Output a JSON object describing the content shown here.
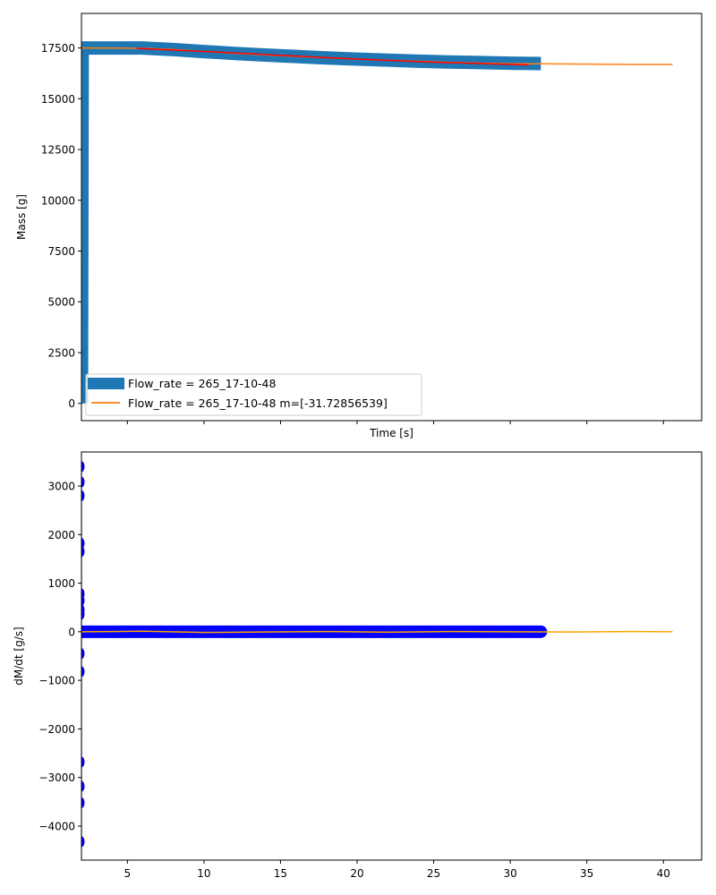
{
  "chart_data": [
    {
      "type": "line",
      "xlabel": "Time [s]",
      "ylabel": "Mass [g]",
      "xlim": [
        2.0,
        42.5
      ],
      "ylim": [
        -850,
        19200
      ],
      "xticks": [
        5,
        10,
        15,
        20,
        25,
        30,
        35,
        40
      ],
      "x_tick_labels_visible": false,
      "yticks": [
        0,
        2500,
        5000,
        7500,
        10000,
        12500,
        15000,
        17500
      ],
      "ytick_labels": [
        "0",
        "2500",
        "5000",
        "7500",
        "10000",
        "12500",
        "15000",
        "17500"
      ],
      "grid": false,
      "legend_position": "lower-left",
      "series": [
        {
          "name": "Flow_rate = 265_17-10-48",
          "style": "thick-band",
          "color": "#1f77b4",
          "x": [
            2.0,
            2.05,
            4,
            6,
            8,
            10,
            12,
            14,
            16,
            18,
            20,
            22,
            24,
            26,
            28,
            30,
            32
          ],
          "y": [
            0,
            17500,
            17500,
            17500,
            17420,
            17320,
            17230,
            17150,
            17080,
            17010,
            16950,
            16900,
            16850,
            16810,
            16780,
            16750,
            16730
          ]
        },
        {
          "name": "Flow_rate = 265_17-10-48 m=[-31.72856539]",
          "style": "line",
          "color": "#ff7f0e",
          "x": [
            2.0,
            4,
            6,
            8,
            10,
            12,
            14,
            16,
            18,
            20,
            22,
            24,
            26,
            28,
            30,
            32,
            34,
            36,
            38,
            40.6
          ],
          "y": [
            17500,
            17500,
            17480,
            17420,
            17330,
            17240,
            17160,
            17090,
            17020,
            16950,
            16890,
            16840,
            16790,
            16750,
            16720,
            16720,
            16710,
            16700,
            16690,
            16690
          ]
        },
        {
          "name": "",
          "style": "line",
          "color": "#ff0000",
          "x": [
            5.6,
            10,
            15,
            20,
            25,
            31.2
          ],
          "y": [
            17480,
            17330,
            17140,
            16950,
            16800,
            16660
          ]
        }
      ]
    },
    {
      "type": "scatter",
      "xlabel": "",
      "ylabel": "dM/dt [g/s]",
      "xlim": [
        2.0,
        42.5
      ],
      "ylim": [
        -4700,
        3700
      ],
      "xticks": [
        5,
        10,
        15,
        20,
        25,
        30,
        35,
        40
      ],
      "xtick_labels": [
        "5",
        "10",
        "15",
        "20",
        "25",
        "30",
        "35",
        "40"
      ],
      "yticks": [
        -4000,
        -3000,
        -2000,
        -1000,
        0,
        1000,
        2000,
        3000
      ],
      "ytick_labels": [
        "−4000",
        "−3000",
        "−2000",
        "−1000",
        "0",
        "1000",
        "2000",
        "3000"
      ],
      "grid": false,
      "series": [
        {
          "name": "",
          "style": "markers",
          "color": "#0000ff",
          "x": [
            2.0,
            2.0,
            2.0,
            2.0,
            2.0,
            2.0,
            2.0,
            2.0,
            2.0,
            2.0,
            2.0,
            2.0,
            2.0,
            2.0,
            2.0
          ],
          "y": [
            3400,
            3080,
            2800,
            1820,
            1650,
            780,
            640,
            450,
            360,
            -450,
            -820,
            -2680,
            -3180,
            -3520,
            -4320
          ],
          "band_x_range": [
            2.0,
            32.0
          ],
          "band_y": 0
        },
        {
          "name": "",
          "style": "line",
          "color": "#ffa500",
          "x": [
            2.0,
            6,
            10,
            14,
            18,
            22,
            26,
            30,
            34,
            38,
            40.6
          ],
          "y": [
            0,
            10,
            -15,
            -5,
            5,
            -10,
            5,
            0,
            -5,
            5,
            0
          ]
        }
      ]
    }
  ]
}
